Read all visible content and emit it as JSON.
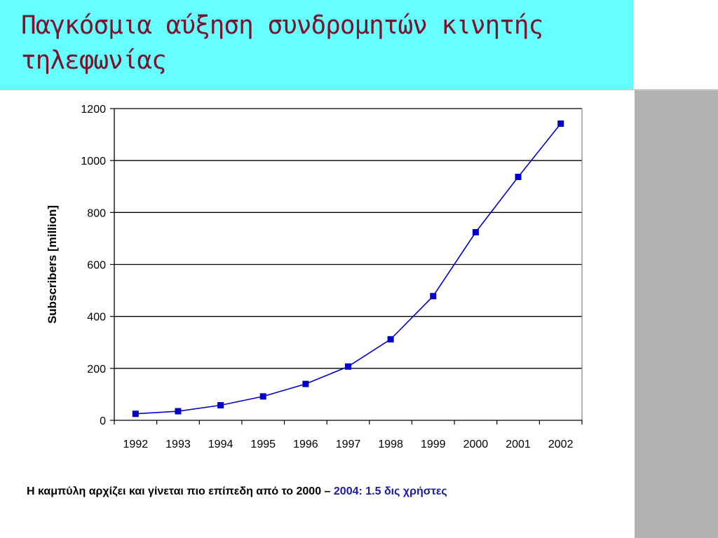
{
  "slide": {
    "title": "Παγκόσμια αύξηση συνδρομητών κινητής τηλεφωνίας",
    "caption_main": "Η καμπύλη αρχίζει και γίνεται πιο επίπεδη από το 2000 – ",
    "caption_highlight": "2004: 1.5 δις χρήστες",
    "colors": {
      "title_band": "#66ffff",
      "title_text": "#7a1530",
      "side_band": "#b2b2b2",
      "series": "#0000cc",
      "highlight": "#1a1aa6"
    }
  },
  "chart_data": {
    "type": "line",
    "title": "",
    "xlabel": "",
    "ylabel": "Subscribers [million]",
    "categories": [
      "1992",
      "1993",
      "1994",
      "1995",
      "1996",
      "1997",
      "1998",
      "1999",
      "2000",
      "2001",
      "2002"
    ],
    "series": [
      {
        "values": [
          25,
          35,
          58,
          92,
          140,
          207,
          312,
          478,
          724,
          937,
          1142
        ]
      }
    ],
    "ylim": [
      0,
      1200
    ],
    "yticks": [
      0,
      200,
      400,
      600,
      800,
      1000,
      1200
    ],
    "grid": "horizontal",
    "legend": "none",
    "marker": "square"
  }
}
